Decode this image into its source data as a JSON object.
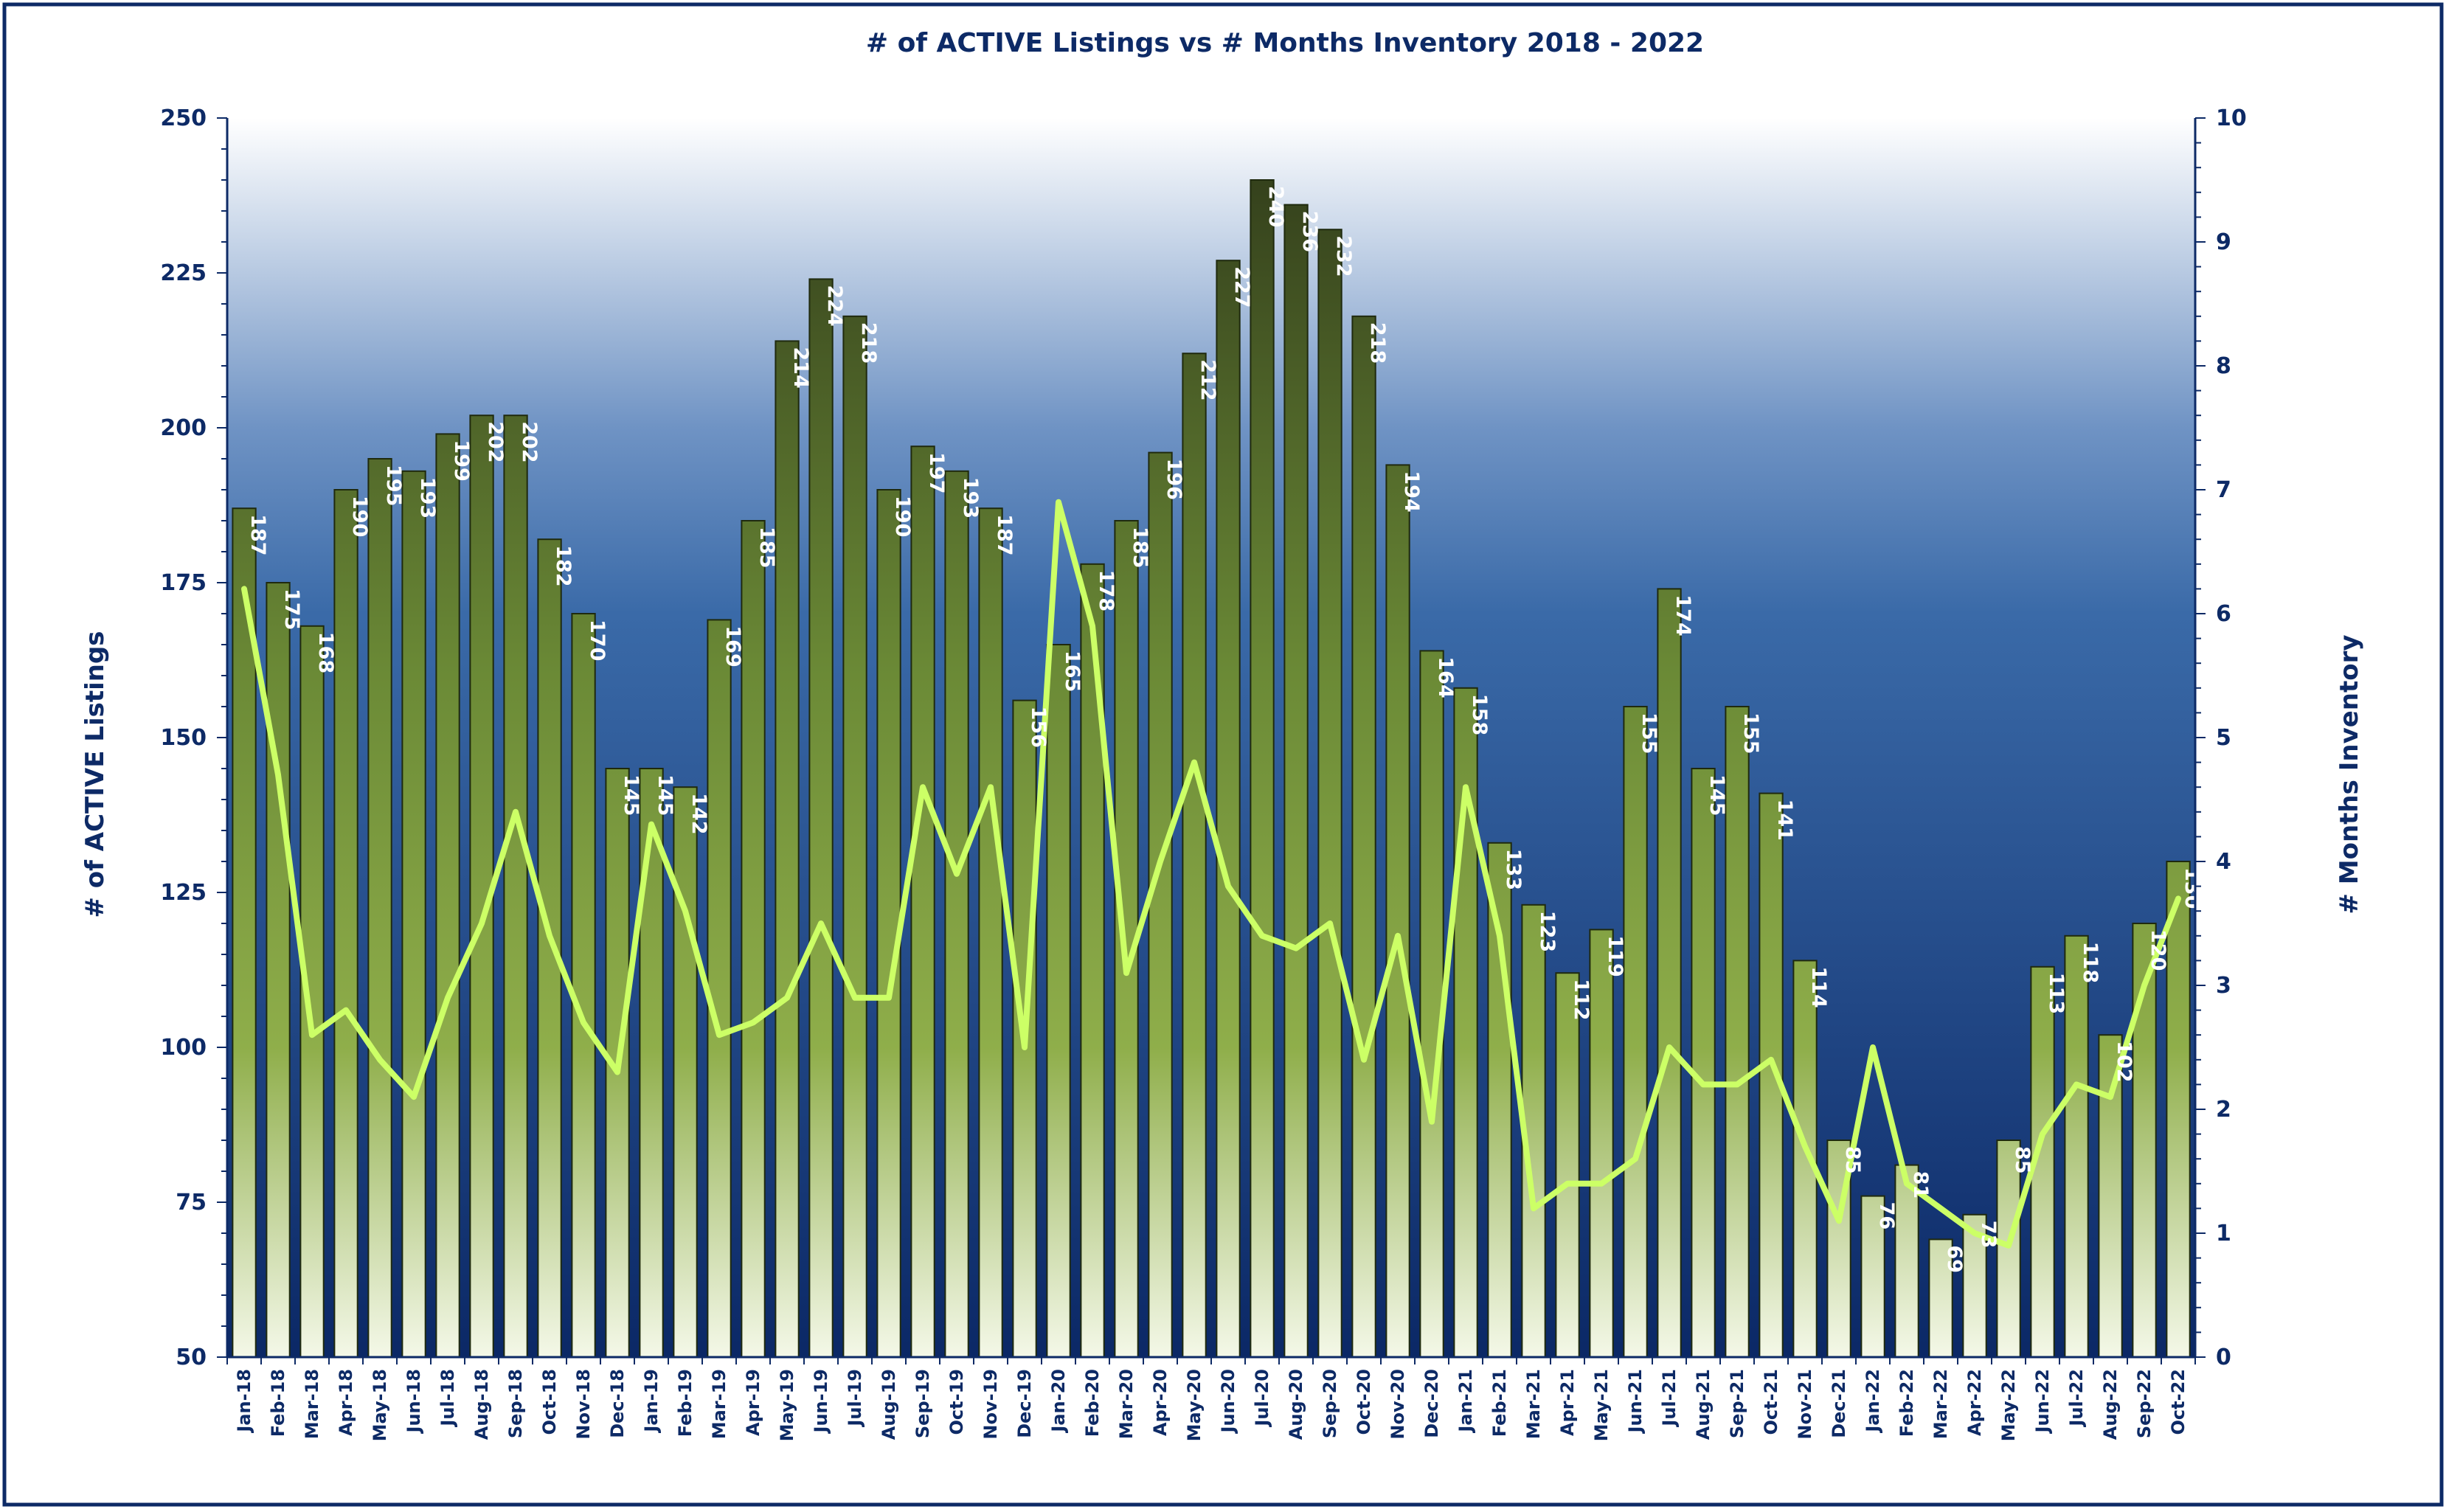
{
  "chart_data": {
    "type": "bar",
    "title": "# of ACTIVE Listings vs # Months Inventory 2018 - 2022",
    "ylabel": "# of ACTIVE Listings",
    "y2label": "# Months Inventory",
    "ylim": [
      50,
      250
    ],
    "y2lim": [
      0,
      10
    ],
    "yticks": [
      "250",
      "225",
      "200",
      "175",
      "150",
      "125",
      "100",
      "75",
      "50"
    ],
    "y2ticks": [
      "10",
      "9",
      "8",
      "7",
      "6",
      "5",
      "4",
      "3",
      "2",
      "1",
      "0"
    ],
    "grid": false,
    "legend": "none",
    "colors": {
      "frame": "#0d2a66",
      "text": "#0d2a66",
      "bar_top": "#2e3819",
      "bar_mid": "#7a9a3e",
      "bar_bottom": "#f4f8e8",
      "line": "#ccff66",
      "bg_top": "#ffffff",
      "bg_mid": "#3a6aa8",
      "bg_bottom": "#0d2a66"
    },
    "categories": [
      "Jan-18",
      "Feb-18",
      "Mar-18",
      "Apr-18",
      "May-18",
      "Jun-18",
      "Jul-18",
      "Aug-18",
      "Sep-18",
      "Oct-18",
      "Nov-18",
      "Dec-18",
      "Jan-19",
      "Feb-19",
      "Mar-19",
      "Apr-19",
      "May-19",
      "Jun-19",
      "Jul-19",
      "Aug-19",
      "Sep-19",
      "Oct-19",
      "Nov-19",
      "Dec-19",
      "Jan-20",
      "Feb-20",
      "Mar-20",
      "Apr-20",
      "May-20",
      "Jun-20",
      "Jul-20",
      "Aug-20",
      "Sep-20",
      "Oct-20",
      "Nov-20",
      "Dec-20",
      "Jan-21",
      "Feb-21",
      "Mar-21",
      "Apr-21",
      "May-21",
      "Jun-21",
      "Jul-21",
      "Aug-21",
      "Sep-21",
      "Oct-21",
      "Nov-21",
      "Dec-21",
      "Jan-22",
      "Feb-22",
      "Mar-22",
      "Apr-22",
      "May-22",
      "Jun-22",
      "Jul-22",
      "Aug-22",
      "Sep-22",
      "Oct-22"
    ],
    "series": [
      {
        "type": "bar",
        "axis": "left",
        "values": [
          187,
          175,
          168,
          190,
          195,
          193,
          199,
          202,
          202,
          182,
          170,
          145,
          145,
          142,
          169,
          185,
          214,
          224,
          218,
          190,
          197,
          193,
          187,
          156,
          165,
          178,
          185,
          196,
          212,
          227,
          240,
          236,
          232,
          218,
          194,
          164,
          158,
          133,
          123,
          112,
          119,
          155,
          174,
          145,
          155,
          141,
          114,
          85,
          76,
          81,
          69,
          73,
          85,
          113,
          118,
          102,
          120,
          130
        ]
      },
      {
        "type": "line",
        "axis": "right",
        "values": [
          6.2,
          4.7,
          2.6,
          2.8,
          2.4,
          2.1,
          2.9,
          3.5,
          4.4,
          3.4,
          2.7,
          2.3,
          4.3,
          3.6,
          2.6,
          2.7,
          2.9,
          3.5,
          2.9,
          2.9,
          4.6,
          3.9,
          4.6,
          2.5,
          6.9,
          5.9,
          3.1,
          4.0,
          4.8,
          3.8,
          3.4,
          3.3,
          3.5,
          2.4,
          3.4,
          1.9,
          4.6,
          3.4,
          1.2,
          1.4,
          1.4,
          1.6,
          2.5,
          2.2,
          2.2,
          2.4,
          1.7,
          1.1,
          2.5,
          1.4,
          1.2,
          1.0,
          0.9,
          1.8,
          2.2,
          2.1,
          3.0,
          3.7
        ]
      }
    ]
  }
}
